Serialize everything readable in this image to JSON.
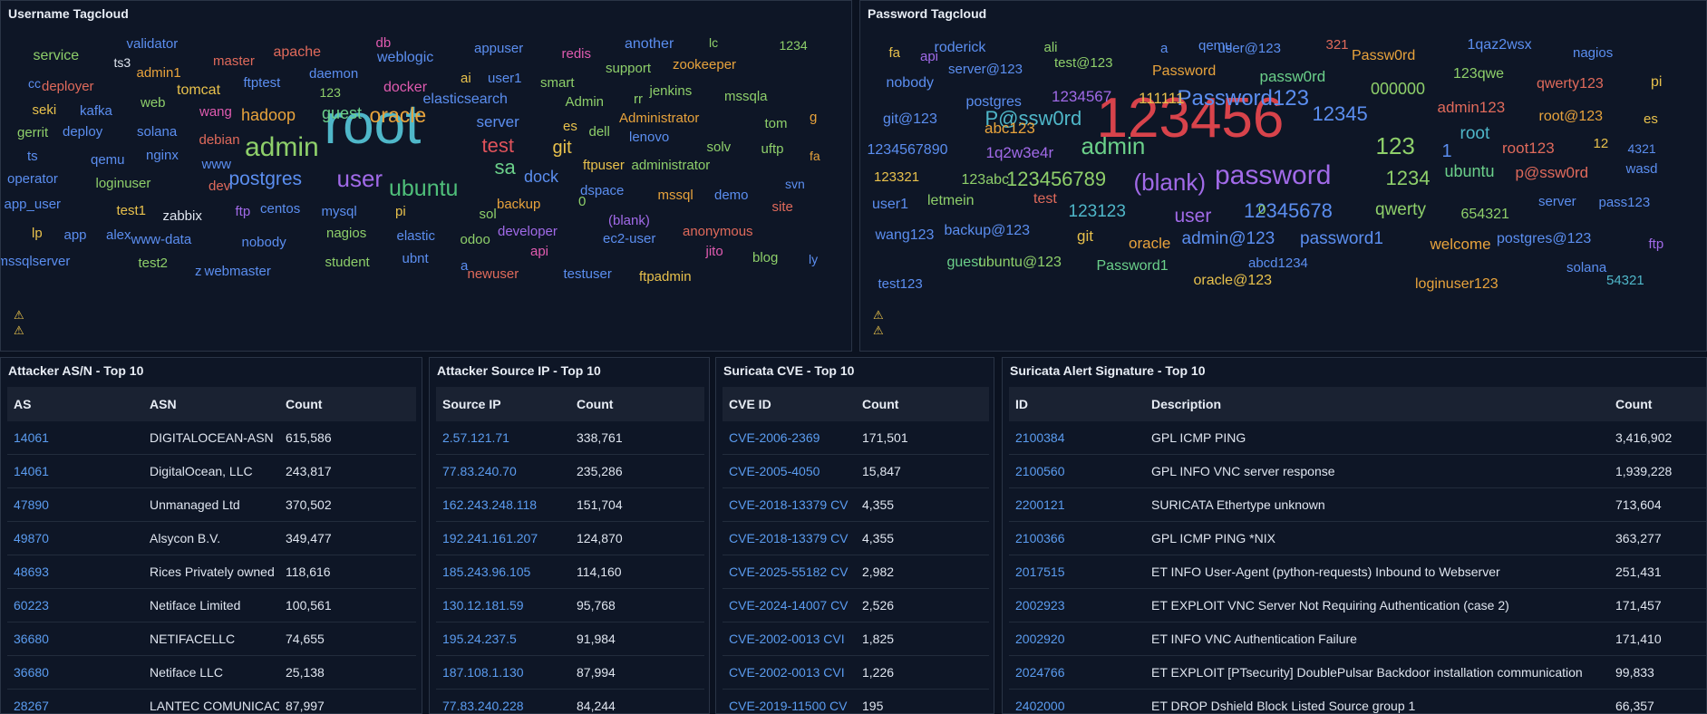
{
  "username_tagcloud": {
    "title": "Username Tagcloud",
    "words": [
      {
        "text": "root",
        "color": "#4fb7c9"
      },
      {
        "text": "admin",
        "color": "#8ecf6a"
      },
      {
        "text": "user",
        "color": "#a16ae8"
      },
      {
        "text": "postgres",
        "color": "#5b8ef0"
      },
      {
        "text": "ubuntu",
        "color": "#4fbf7a"
      },
      {
        "text": "oracle",
        "color": "#e8a33c"
      },
      {
        "text": "test",
        "color": "#e0535b"
      },
      {
        "text": "sa",
        "color": "#6bd08a"
      },
      {
        "text": "dock",
        "color": "#5b8ef0"
      },
      {
        "text": "git",
        "color": "#e8c14c"
      },
      {
        "text": "guest",
        "color": "#6bd08a"
      },
      {
        "text": "hadoop",
        "color": "#e8a33c"
      },
      {
        "text": "server",
        "color": "#5b8ef0"
      },
      {
        "text": "elasticsearch",
        "color": "#5b8ef0"
      },
      {
        "text": "service",
        "color": "#8ecf6a"
      },
      {
        "text": "validator",
        "color": "#5b8ef0"
      },
      {
        "text": "ts3",
        "color": "#dfe5ef"
      },
      {
        "text": "master",
        "color": "#e06a5b"
      },
      {
        "text": "apache",
        "color": "#e06a5b"
      },
      {
        "text": "db",
        "color": "#e05bb0"
      },
      {
        "text": "weblogic",
        "color": "#5b8ef0"
      },
      {
        "text": "appuser",
        "color": "#5b8ef0"
      },
      {
        "text": "redis",
        "color": "#e05bb0"
      },
      {
        "text": "another",
        "color": "#5b8ef0"
      },
      {
        "text": "lc",
        "color": "#8ecf6a"
      },
      {
        "text": "1234",
        "color": "#8ecf6a"
      },
      {
        "text": "cc",
        "color": "#5b8ef0"
      },
      {
        "text": "deployer",
        "color": "#e06a5b"
      },
      {
        "text": "admin1",
        "color": "#e8a33c"
      },
      {
        "text": "ftptest",
        "color": "#5b8ef0"
      },
      {
        "text": "daemon",
        "color": "#5b8ef0"
      },
      {
        "text": "docker",
        "color": "#e05bb0"
      },
      {
        "text": "ai",
        "color": "#e8c14c"
      },
      {
        "text": "user1",
        "color": "#5b8ef0"
      },
      {
        "text": "smart",
        "color": "#8ecf6a"
      },
      {
        "text": "support",
        "color": "#8ecf6a"
      },
      {
        "text": "zookeeper",
        "color": "#e8a33c"
      },
      {
        "text": "tomcat",
        "color": "#e8c14c"
      },
      {
        "text": "123",
        "color": "#8ecf6a"
      },
      {
        "text": "jenkins",
        "color": "#8ecf6a"
      },
      {
        "text": "mssqla",
        "color": "#8ecf6a"
      },
      {
        "text": "seki",
        "color": "#e8c14c"
      },
      {
        "text": "web",
        "color": "#8ecf6a"
      },
      {
        "text": "kafka",
        "color": "#5b8ef0"
      },
      {
        "text": "wang",
        "color": "#e05bb0"
      },
      {
        "text": "Admin",
        "color": "#8ecf6a"
      },
      {
        "text": "rr",
        "color": "#8ecf6a"
      },
      {
        "text": "Administrator",
        "color": "#e8a33c"
      },
      {
        "text": "tom",
        "color": "#8ecf6a"
      },
      {
        "text": "g",
        "color": "#e8a33c"
      },
      {
        "text": "gerrit",
        "color": "#8ecf6a"
      },
      {
        "text": "deploy",
        "color": "#5b8ef0"
      },
      {
        "text": "solana",
        "color": "#5b8ef0"
      },
      {
        "text": "debian",
        "color": "#e06a5b"
      },
      {
        "text": "es",
        "color": "#e8c14c"
      },
      {
        "text": "dell",
        "color": "#8ecf6a"
      },
      {
        "text": "lenovo",
        "color": "#5b8ef0"
      },
      {
        "text": "solv",
        "color": "#8ecf6a"
      },
      {
        "text": "uftp",
        "color": "#8ecf6a"
      },
      {
        "text": "ts",
        "color": "#5b8ef0"
      },
      {
        "text": "qemu",
        "color": "#5b8ef0"
      },
      {
        "text": "nginx",
        "color": "#5b8ef0"
      },
      {
        "text": "www",
        "color": "#5b8ef0"
      },
      {
        "text": "ftpuser",
        "color": "#e8c14c"
      },
      {
        "text": "administrator",
        "color": "#8ecf6a"
      },
      {
        "text": "fa",
        "color": "#e8a33c"
      },
      {
        "text": "operator",
        "color": "#5b8ef0"
      },
      {
        "text": "loginuser",
        "color": "#8ecf6a"
      },
      {
        "text": "dev",
        "color": "#e06a5b"
      },
      {
        "text": "dspace",
        "color": "#5b8ef0"
      },
      {
        "text": "mssql",
        "color": "#e8a33c"
      },
      {
        "text": "demo",
        "color": "#5b8ef0"
      },
      {
        "text": "svn",
        "color": "#5b8ef0"
      },
      {
        "text": "app_user",
        "color": "#5b8ef0"
      },
      {
        "text": "test1",
        "color": "#e8c14c"
      },
      {
        "text": "zabbix",
        "color": "#dfe5ef"
      },
      {
        "text": "ftp",
        "color": "#a16ae8"
      },
      {
        "text": "centos",
        "color": "#5b8ef0"
      },
      {
        "text": "mysql",
        "color": "#5b8ef0"
      },
      {
        "text": "pi",
        "color": "#e8c14c"
      },
      {
        "text": "sol",
        "color": "#8ecf6a"
      },
      {
        "text": "backup",
        "color": "#e8a33c"
      },
      {
        "text": "0",
        "color": "#8ecf6a"
      },
      {
        "text": "site",
        "color": "#e06a5b"
      },
      {
        "text": "lp",
        "color": "#e8c14c"
      },
      {
        "text": "app",
        "color": "#5b8ef0"
      },
      {
        "text": "alex",
        "color": "#5b8ef0"
      },
      {
        "text": "www-data",
        "color": "#5b8ef0"
      },
      {
        "text": "nobody",
        "color": "#5b8ef0"
      },
      {
        "text": "nagios",
        "color": "#8ecf6a"
      },
      {
        "text": "elastic",
        "color": "#5b8ef0"
      },
      {
        "text": "odoo",
        "color": "#8ecf6a"
      },
      {
        "text": "developer",
        "color": "#a16ae8"
      },
      {
        "text": "(blank)",
        "color": "#a16ae8"
      },
      {
        "text": "anonymous",
        "color": "#e06a5b"
      },
      {
        "text": "mssqlserver",
        "color": "#5b8ef0"
      },
      {
        "text": "test2",
        "color": "#8ecf6a"
      },
      {
        "text": "ec2-user",
        "color": "#5b8ef0"
      },
      {
        "text": "api",
        "color": "#e05bb0"
      },
      {
        "text": "jito",
        "color": "#e05bb0"
      },
      {
        "text": "blog",
        "color": "#8ecf6a"
      },
      {
        "text": "ly",
        "color": "#5b8ef0"
      },
      {
        "text": "z",
        "color": "#5b8ef0"
      },
      {
        "text": "webmaster",
        "color": "#5b8ef0"
      },
      {
        "text": "student",
        "color": "#8ecf6a"
      },
      {
        "text": "ubnt",
        "color": "#5b8ef0"
      },
      {
        "text": "a",
        "color": "#5b8ef0"
      },
      {
        "text": "newuser",
        "color": "#e06a5b"
      },
      {
        "text": "testuser",
        "color": "#5b8ef0"
      },
      {
        "text": "ftpadmin",
        "color": "#e8c14c"
      }
    ]
  },
  "password_tagcloud": {
    "title": "Password Tagcloud",
    "words": [
      {
        "text": "123456",
        "color": "#d8434b"
      },
      {
        "text": "password",
        "color": "#a16ae8"
      },
      {
        "text": "(blank)",
        "color": "#a16ae8"
      },
      {
        "text": "Password123",
        "color": "#5b8ef0"
      },
      {
        "text": "admin",
        "color": "#6bd08a"
      },
      {
        "text": "P@ssw0rd",
        "color": "#4fb7c9"
      },
      {
        "text": "123456789",
        "color": "#8ecf6a"
      },
      {
        "text": "12345678",
        "color": "#5b8ef0"
      },
      {
        "text": "12345",
        "color": "#5b8ef0"
      },
      {
        "text": "123",
        "color": "#8ecf6a"
      },
      {
        "text": "1234",
        "color": "#8ecf6a"
      },
      {
        "text": "fa",
        "color": "#e8c14c"
      },
      {
        "text": "api",
        "color": "#a16ae8"
      },
      {
        "text": "roderick",
        "color": "#5b8ef0"
      },
      {
        "text": "ali",
        "color": "#8ecf6a"
      },
      {
        "text": "a",
        "color": "#5b8ef0"
      },
      {
        "text": "qemu",
        "color": "#5b8ef0"
      },
      {
        "text": "user@123",
        "color": "#5b8ef0"
      },
      {
        "text": "321",
        "color": "#e06a5b"
      },
      {
        "text": "Passw0rd",
        "color": "#e8a33c"
      },
      {
        "text": "1qaz2wsx",
        "color": "#5b8ef0"
      },
      {
        "text": "nagios",
        "color": "#5b8ef0"
      },
      {
        "text": "nobody",
        "color": "#5b8ef0"
      },
      {
        "text": "server@123",
        "color": "#5b8ef0"
      },
      {
        "text": "test@123",
        "color": "#8ecf6a"
      },
      {
        "text": "Password",
        "color": "#e8a33c"
      },
      {
        "text": "passw0rd",
        "color": "#6bd08a"
      },
      {
        "text": "123qwe",
        "color": "#8ecf6a"
      },
      {
        "text": "qwerty123",
        "color": "#e06a5b"
      },
      {
        "text": "pi",
        "color": "#e8c14c"
      },
      {
        "text": "postgres",
        "color": "#5b8ef0"
      },
      {
        "text": "1234567",
        "color": "#a16ae8"
      },
      {
        "text": "111111",
        "color": "#e8c14c"
      },
      {
        "text": "000000",
        "color": "#8ecf6a"
      },
      {
        "text": "admin123",
        "color": "#e06a5b"
      },
      {
        "text": "root@123",
        "color": "#e8a33c"
      },
      {
        "text": "es",
        "color": "#e8c14c"
      },
      {
        "text": "git@123",
        "color": "#5b8ef0"
      },
      {
        "text": "abc123",
        "color": "#e8a33c"
      },
      {
        "text": "root",
        "color": "#4fb7c9"
      },
      {
        "text": "root123",
        "color": "#e06a5b"
      },
      {
        "text": "12",
        "color": "#e8c14c"
      },
      {
        "text": "4321",
        "color": "#5b8ef0"
      },
      {
        "text": "1234567890",
        "color": "#5b8ef0"
      },
      {
        "text": "1q2w3e4r",
        "color": "#a16ae8"
      },
      {
        "text": "1",
        "color": "#5b8ef0"
      },
      {
        "text": "ubuntu",
        "color": "#6bd08a"
      },
      {
        "text": "p@ssw0rd",
        "color": "#e06a5b"
      },
      {
        "text": "wasd",
        "color": "#5b8ef0"
      },
      {
        "text": "123321",
        "color": "#e8c14c"
      },
      {
        "text": "123abc",
        "color": "#8ecf6a"
      },
      {
        "text": "qwerty",
        "color": "#8ecf6a"
      },
      {
        "text": "user1",
        "color": "#5b8ef0"
      },
      {
        "text": "letmein",
        "color": "#8ecf6a"
      },
      {
        "text": "test",
        "color": "#e06a5b"
      },
      {
        "text": "123123",
        "color": "#4fb7c9"
      },
      {
        "text": "user",
        "color": "#a16ae8"
      },
      {
        "text": "0",
        "color": "#8ecf6a"
      },
      {
        "text": "654321",
        "color": "#8ecf6a"
      },
      {
        "text": "server",
        "color": "#5b8ef0"
      },
      {
        "text": "pass123",
        "color": "#5b8ef0"
      },
      {
        "text": "wang123",
        "color": "#5b8ef0"
      },
      {
        "text": "backup@123",
        "color": "#5b8ef0"
      },
      {
        "text": "git",
        "color": "#e8c14c"
      },
      {
        "text": "oracle",
        "color": "#e8a33c"
      },
      {
        "text": "admin@123",
        "color": "#5b8ef0"
      },
      {
        "text": "password1",
        "color": "#5b8ef0"
      },
      {
        "text": "welcome",
        "color": "#e8a33c"
      },
      {
        "text": "postgres@123",
        "color": "#5b8ef0"
      },
      {
        "text": "ftp",
        "color": "#a16ae8"
      },
      {
        "text": "guest",
        "color": "#6bd08a"
      },
      {
        "text": "ubuntu@123",
        "color": "#8ecf6a"
      },
      {
        "text": "Password1",
        "color": "#6bd08a"
      },
      {
        "text": "abcd1234",
        "color": "#5b8ef0"
      },
      {
        "text": "solana",
        "color": "#5b8ef0"
      },
      {
        "text": "test123",
        "color": "#5b8ef0"
      },
      {
        "text": "oracle@123",
        "color": "#e8c14c"
      },
      {
        "text": "loginuser123",
        "color": "#e8a33c"
      },
      {
        "text": "54321",
        "color": "#4fb7c9"
      }
    ]
  },
  "asn_table": {
    "title": "Attacker AS/N - Top 10",
    "columns": [
      "AS",
      "ASN",
      "Count"
    ],
    "rows": [
      [
        "14061",
        "DIGITALOCEAN-ASN",
        "615,586"
      ],
      [
        "14061",
        "DigitalOcean, LLC",
        "243,817"
      ],
      [
        "47890",
        "Unmanaged Ltd",
        "370,502"
      ],
      [
        "49870",
        "Alsycon B.V.",
        "349,477"
      ],
      [
        "48693",
        "Rices Privately owned",
        "118,616"
      ],
      [
        "60223",
        "Netiface Limited",
        "100,561"
      ],
      [
        "36680",
        "NETIFACELLC",
        "74,655"
      ],
      [
        "36680",
        "Netiface LLC",
        "25,138"
      ],
      [
        "28267",
        "LANTEC COMUNICAC",
        "87,997"
      ]
    ]
  },
  "ip_table": {
    "title": "Attacker Source IP - Top 10",
    "columns": [
      "Source IP",
      "Count"
    ],
    "rows": [
      [
        "2.57.121.71",
        "338,761"
      ],
      [
        "77.83.240.70",
        "235,286"
      ],
      [
        "162.243.248.118",
        "151,704"
      ],
      [
        "192.241.161.207",
        "124,870"
      ],
      [
        "185.243.96.105",
        "114,160"
      ],
      [
        "130.12.181.59",
        "95,768"
      ],
      [
        "195.24.237.5",
        "91,984"
      ],
      [
        "187.108.1.130",
        "87,994"
      ],
      [
        "77.83.240.228",
        "84,244"
      ]
    ]
  },
  "cve_table": {
    "title": "Suricata CVE - Top 10",
    "columns": [
      "CVE ID",
      "Count"
    ],
    "rows": [
      [
        "CVE-2006-2369",
        "171,501"
      ],
      [
        "CVE-2005-4050",
        "15,847"
      ],
      [
        "CVE-2018-13379 CV",
        "4,355"
      ],
      [
        "CVE-2018-13379 CV",
        "4,355"
      ],
      [
        "CVE-2025-55182 CV",
        "2,982"
      ],
      [
        "CVE-2024-14007 CV",
        "2,526"
      ],
      [
        "CVE-2002-0013 CVI",
        "1,825"
      ],
      [
        "CVE-2002-0013 CVI",
        "1,226"
      ],
      [
        "CVE-2019-11500 CV",
        "195"
      ]
    ]
  },
  "sig_table": {
    "title": "Suricata Alert Signature - Top 10",
    "columns": [
      "ID",
      "Description",
      "Count"
    ],
    "rows": [
      [
        "2100384",
        "GPL ICMP PING",
        "3,416,902"
      ],
      [
        "2100560",
        "GPL INFO VNC server response",
        "1,939,228"
      ],
      [
        "2200121",
        "SURICATA Ethertype unknown",
        "713,604"
      ],
      [
        "2100366",
        "GPL ICMP PING *NIX",
        "363,277"
      ],
      [
        "2017515",
        "ET INFO User-Agent (python-requests) Inbound to Webserver",
        "251,431"
      ],
      [
        "2002923",
        "ET EXPLOIT VNC Server Not Requiring Authentication (case 2)",
        "171,457"
      ],
      [
        "2002920",
        "ET INFO VNC Authentication Failure",
        "171,410"
      ],
      [
        "2024766",
        "ET EXPLOIT [PTsecurity] DoublePulsar Backdoor installation communication",
        "99,833"
      ],
      [
        "2402000",
        "ET DROP Dshield Block Listed Source group 1",
        "66,357"
      ]
    ]
  }
}
